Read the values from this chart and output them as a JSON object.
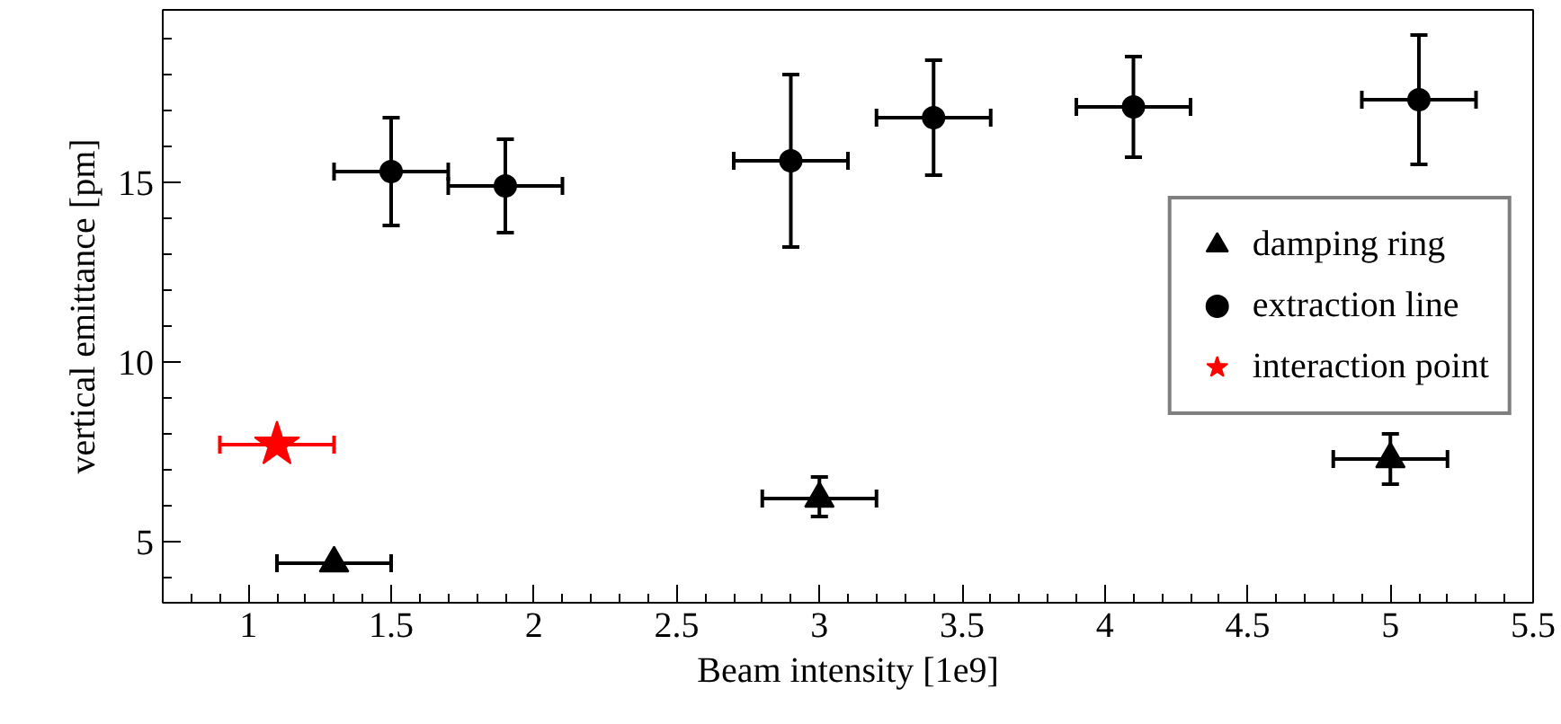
{
  "chart_data": {
    "type": "scatter",
    "xlabel": "Beam intensity [1e9]",
    "ylabel": "vertical emittance [pm]",
    "xlim": [
      0.7,
      5.5
    ],
    "ylim": [
      3.3,
      19.8
    ],
    "xticks": [
      1,
      1.5,
      2,
      2.5,
      3,
      3.5,
      4,
      4.5,
      5,
      5.5
    ],
    "yticks": [
      5,
      10,
      15
    ],
    "grid": false,
    "legend": "right",
    "series": [
      {
        "name": "damping ring",
        "color": "#000000",
        "marker": "triangle",
        "x": [
          1.3,
          3.0,
          5.0
        ],
        "values": [
          4.4,
          6.2,
          7.3
        ],
        "xerrors": [
          0.2,
          0.2,
          0.2
        ],
        "errors": [
          null,
          [
            5.7,
            6.8
          ],
          [
            6.6,
            8.0
          ]
        ]
      },
      {
        "name": "extraction line",
        "color": "#000000",
        "marker": "circle",
        "x": [
          1.5,
          1.9,
          2.9,
          3.4,
          4.1,
          5.1
        ],
        "values": [
          15.3,
          14.9,
          15.6,
          16.8,
          17.1,
          17.3
        ],
        "xerrors": [
          0.2,
          0.2,
          0.2,
          0.2,
          0.2,
          0.2
        ],
        "errors": [
          [
            13.8,
            16.8
          ],
          [
            13.6,
            16.2
          ],
          [
            13.2,
            18.0
          ],
          [
            15.2,
            18.4
          ],
          [
            15.7,
            18.5
          ],
          [
            15.5,
            19.1
          ]
        ]
      },
      {
        "name": "interaction point",
        "color": "#ff0000",
        "marker": "star",
        "x": [
          1.1
        ],
        "values": [
          7.7
        ],
        "xerrors": [
          0.2
        ],
        "errors": [
          null
        ]
      }
    ]
  }
}
